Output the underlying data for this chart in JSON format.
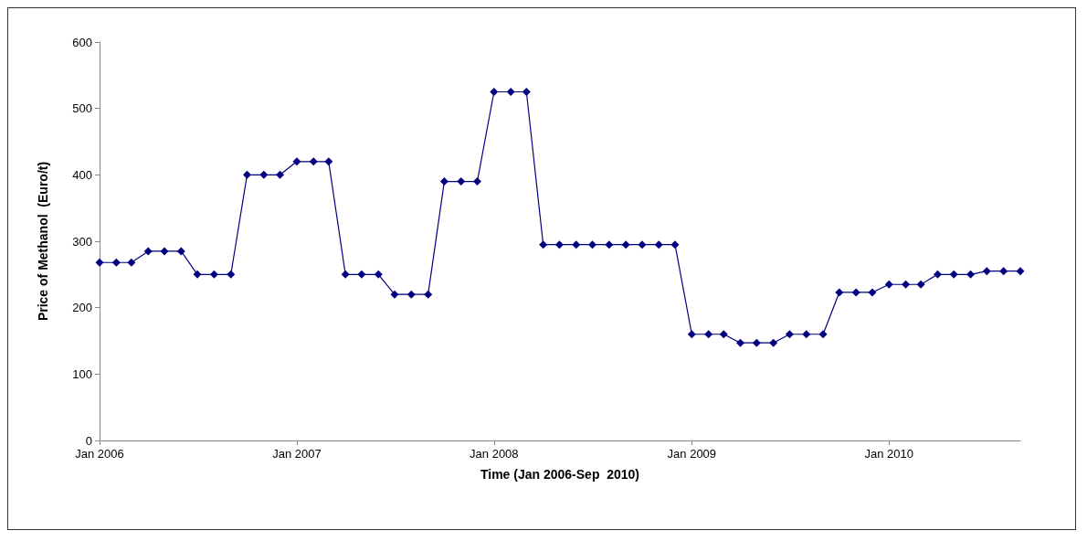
{
  "chart_data": {
    "type": "line",
    "xlabel": "Time (Jan 2006-Sep  2010)",
    "ylabel": "Price of Methanol  (Euro/t)",
    "x": [
      "2006-01",
      "2006-02",
      "2006-03",
      "2006-04",
      "2006-05",
      "2006-06",
      "2006-07",
      "2006-08",
      "2006-09",
      "2006-10",
      "2006-11",
      "2006-12",
      "2007-01",
      "2007-02",
      "2007-03",
      "2007-04",
      "2007-05",
      "2007-06",
      "2007-07",
      "2007-08",
      "2007-09",
      "2007-10",
      "2007-11",
      "2007-12",
      "2008-01",
      "2008-02",
      "2008-03",
      "2008-04",
      "2008-05",
      "2008-06",
      "2008-07",
      "2008-08",
      "2008-09",
      "2008-10",
      "2008-11",
      "2008-12",
      "2009-01",
      "2009-02",
      "2009-03",
      "2009-04",
      "2009-05",
      "2009-06",
      "2009-07",
      "2009-08",
      "2009-09",
      "2009-10",
      "2009-11",
      "2009-12",
      "2010-01",
      "2010-02",
      "2010-03",
      "2010-04",
      "2010-05",
      "2010-06",
      "2010-07",
      "2010-08",
      "2010-09"
    ],
    "series": [
      {
        "color": "#000080",
        "values": [
          268,
          268,
          268,
          285,
          285,
          285,
          250,
          250,
          250,
          400,
          400,
          400,
          420,
          420,
          420,
          250,
          250,
          250,
          220,
          220,
          220,
          390,
          390,
          390,
          525,
          525,
          525,
          295,
          295,
          295,
          295,
          295,
          295,
          295,
          295,
          295,
          160,
          160,
          160,
          147,
          147,
          147,
          160,
          160,
          160,
          223,
          223,
          223,
          235,
          235,
          235,
          250,
          250,
          250,
          255,
          255,
          255
        ]
      }
    ],
    "xlim": [
      "2006-01",
      "2010-09"
    ],
    "xticks": [
      {
        "value": "2006-01",
        "label": "Jan 2006"
      },
      {
        "value": "2007-01",
        "label": "Jan 2007"
      },
      {
        "value": "2008-01",
        "label": "Jan 2008"
      },
      {
        "value": "2009-01",
        "label": "Jan 2009"
      },
      {
        "value": "2010-01",
        "label": "Jan 2010"
      }
    ],
    "ylim": [
      0,
      600
    ],
    "yticks": [
      0,
      100,
      200,
      300,
      400,
      500,
      600
    ],
    "grid": false,
    "marker": "diamond",
    "line_style": "solid"
  }
}
